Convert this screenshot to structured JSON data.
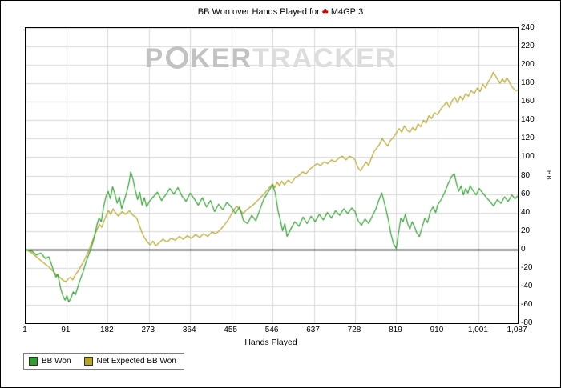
{
  "title": {
    "prefix": "BB Won over Hands Played for",
    "club_symbol": "♣",
    "subject": "M4GPI3"
  },
  "watermark": {
    "text_p": "P",
    "text_ker": "KER",
    "text_tracker": "TRACKER"
  },
  "colors": {
    "grid": "#d8d8d8",
    "axis": "#000000",
    "title_club": "#cc0000",
    "bb_won": "#2f9e2f",
    "net_expected": "#b5a426"
  },
  "chart_data": {
    "type": "line",
    "title": "BB Won over Hands Played for ♣ M4GPI3",
    "xlabel": "Hands Played",
    "ylabel": "BB",
    "xlim": [
      1,
      1087
    ],
    "ylim": [
      -80,
      240
    ],
    "grid": true,
    "zero_line": true,
    "legend_position": "bottom-left",
    "y_ticks": [
      240,
      220,
      200,
      180,
      160,
      140,
      120,
      100,
      80,
      60,
      40,
      20,
      0,
      -20,
      -40,
      -60,
      -80
    ],
    "x_ticks": [
      1,
      91,
      182,
      273,
      364,
      455,
      546,
      637,
      728,
      819,
      910,
      1001,
      1087
    ],
    "x_tick_labels": [
      "1",
      "91",
      "182",
      "273",
      "364",
      "455",
      "546",
      "637",
      "728",
      "819",
      "910",
      "1,001",
      "1,087"
    ],
    "series": [
      {
        "name": "BB Won",
        "color": "#2f9e2f",
        "points": [
          [
            1,
            0
          ],
          [
            15,
            -2
          ],
          [
            25,
            -6
          ],
          [
            35,
            -4
          ],
          [
            45,
            -10
          ],
          [
            52,
            -8
          ],
          [
            58,
            -16
          ],
          [
            63,
            -24
          ],
          [
            68,
            -30
          ],
          [
            72,
            -27
          ],
          [
            78,
            -42
          ],
          [
            83,
            -50
          ],
          [
            88,
            -55
          ],
          [
            92,
            -50
          ],
          [
            96,
            -57
          ],
          [
            101,
            -53
          ],
          [
            106,
            -46
          ],
          [
            111,
            -49
          ],
          [
            116,
            -41
          ],
          [
            122,
            -32
          ],
          [
            128,
            -24
          ],
          [
            134,
            -14
          ],
          [
            140,
            -6
          ],
          [
            146,
            2
          ],
          [
            152,
            12
          ],
          [
            158,
            26
          ],
          [
            163,
            34
          ],
          [
            168,
            30
          ],
          [
            173,
            46
          ],
          [
            178,
            57
          ],
          [
            183,
            63
          ],
          [
            188,
            55
          ],
          [
            193,
            68
          ],
          [
            198,
            60
          ],
          [
            203,
            50
          ],
          [
            208,
            57
          ],
          [
            213,
            44
          ],
          [
            218,
            52
          ],
          [
            224,
            62
          ],
          [
            229,
            72
          ],
          [
            233,
            84
          ],
          [
            238,
            76
          ],
          [
            243,
            64
          ],
          [
            248,
            54
          ],
          [
            253,
            62
          ],
          [
            258,
            48
          ],
          [
            263,
            56
          ],
          [
            268,
            46
          ],
          [
            274,
            52
          ],
          [
            283,
            57
          ],
          [
            292,
            62
          ],
          [
            301,
            53
          ],
          [
            310,
            59
          ],
          [
            319,
            66
          ],
          [
            328,
            60
          ],
          [
            337,
            67
          ],
          [
            346,
            58
          ],
          [
            355,
            52
          ],
          [
            364,
            61
          ],
          [
            373,
            55
          ],
          [
            382,
            48
          ],
          [
            391,
            56
          ],
          [
            400,
            46
          ],
          [
            409,
            53
          ],
          [
            418,
            41
          ],
          [
            427,
            49
          ],
          [
            436,
            43
          ],
          [
            445,
            51
          ],
          [
            455,
            46
          ],
          [
            464,
            39
          ],
          [
            473,
            46
          ],
          [
            482,
            31
          ],
          [
            491,
            28
          ],
          [
            500,
            37
          ],
          [
            509,
            31
          ],
          [
            518,
            43
          ],
          [
            527,
            55
          ],
          [
            536,
            62
          ],
          [
            546,
            70
          ],
          [
            552,
            61
          ],
          [
            558,
            42
          ],
          [
            563,
            32
          ],
          [
            568,
            20
          ],
          [
            573,
            28
          ],
          [
            578,
            14
          ],
          [
            586,
            22
          ],
          [
            595,
            30
          ],
          [
            604,
            25
          ],
          [
            613,
            35
          ],
          [
            622,
            28
          ],
          [
            631,
            36
          ],
          [
            640,
            30
          ],
          [
            649,
            38
          ],
          [
            658,
            32
          ],
          [
            667,
            40
          ],
          [
            676,
            34
          ],
          [
            685,
            42
          ],
          [
            694,
            37
          ],
          [
            703,
            44
          ],
          [
            712,
            39
          ],
          [
            721,
            45
          ],
          [
            728,
            41
          ],
          [
            735,
            31
          ],
          [
            742,
            26
          ],
          [
            750,
            33
          ],
          [
            758,
            28
          ],
          [
            766,
            36
          ],
          [
            774,
            44
          ],
          [
            781,
            54
          ],
          [
            787,
            61
          ],
          [
            792,
            52
          ],
          [
            797,
            42
          ],
          [
            802,
            31
          ],
          [
            807,
            17
          ],
          [
            813,
            6
          ],
          [
            819,
            1
          ],
          [
            824,
            18
          ],
          [
            829,
            34
          ],
          [
            834,
            30
          ],
          [
            839,
            38
          ],
          [
            844,
            28
          ],
          [
            849,
            22
          ],
          [
            854,
            30
          ],
          [
            859,
            25
          ],
          [
            864,
            18
          ],
          [
            870,
            14
          ],
          [
            876,
            24
          ],
          [
            882,
            34
          ],
          [
            888,
            29
          ],
          [
            894,
            41
          ],
          [
            900,
            46
          ],
          [
            906,
            40
          ],
          [
            910,
            48
          ],
          [
            918,
            54
          ],
          [
            926,
            62
          ],
          [
            934,
            72
          ],
          [
            941,
            79
          ],
          [
            947,
            82
          ],
          [
            952,
            71
          ],
          [
            957,
            63
          ],
          [
            962,
            69
          ],
          [
            967,
            59
          ],
          [
            972,
            66
          ],
          [
            977,
            61
          ],
          [
            982,
            69
          ],
          [
            988,
            64
          ],
          [
            995,
            59
          ],
          [
            1002,
            66
          ],
          [
            1010,
            61
          ],
          [
            1018,
            56
          ],
          [
            1026,
            52
          ],
          [
            1034,
            47
          ],
          [
            1042,
            54
          ],
          [
            1050,
            50
          ],
          [
            1058,
            57
          ],
          [
            1066,
            52
          ],
          [
            1074,
            59
          ],
          [
            1081,
            55
          ],
          [
            1087,
            58
          ]
        ]
      },
      {
        "name": "Net Expected BB Won",
        "color": "#b5a426",
        "points": [
          [
            1,
            0
          ],
          [
            12,
            -3
          ],
          [
            22,
            -7
          ],
          [
            32,
            -11
          ],
          [
            42,
            -15
          ],
          [
            52,
            -19
          ],
          [
            62,
            -24
          ],
          [
            70,
            -28
          ],
          [
            78,
            -31
          ],
          [
            85,
            -34
          ],
          [
            90,
            -35
          ],
          [
            95,
            -32
          ],
          [
            100,
            -30
          ],
          [
            105,
            -33
          ],
          [
            110,
            -28
          ],
          [
            116,
            -24
          ],
          [
            122,
            -19
          ],
          [
            128,
            -14
          ],
          [
            134,
            -8
          ],
          [
            140,
            -2
          ],
          [
            146,
            6
          ],
          [
            152,
            14
          ],
          [
            158,
            21
          ],
          [
            164,
            27
          ],
          [
            169,
            24
          ],
          [
            174,
            31
          ],
          [
            179,
            37
          ],
          [
            184,
            42
          ],
          [
            189,
            38
          ],
          [
            194,
            44
          ],
          [
            199,
            40
          ],
          [
            206,
            36
          ],
          [
            214,
            41
          ],
          [
            222,
            38
          ],
          [
            230,
            42
          ],
          [
            238,
            37
          ],
          [
            246,
            34
          ],
          [
            252,
            26
          ],
          [
            258,
            18
          ],
          [
            264,
            12
          ],
          [
            270,
            8
          ],
          [
            276,
            5
          ],
          [
            282,
            9
          ],
          [
            288,
            4
          ],
          [
            295,
            7
          ],
          [
            304,
            11
          ],
          [
            313,
            8
          ],
          [
            322,
            12
          ],
          [
            331,
            10
          ],
          [
            340,
            14
          ],
          [
            349,
            11
          ],
          [
            358,
            15
          ],
          [
            367,
            12
          ],
          [
            376,
            16
          ],
          [
            385,
            13
          ],
          [
            394,
            17
          ],
          [
            403,
            14
          ],
          [
            412,
            19
          ],
          [
            421,
            17
          ],
          [
            430,
            21
          ],
          [
            439,
            26
          ],
          [
            448,
            32
          ],
          [
            455,
            38
          ],
          [
            461,
            43
          ],
          [
            467,
            47
          ],
          [
            473,
            43
          ],
          [
            481,
            39
          ],
          [
            489,
            43
          ],
          [
            497,
            46
          ],
          [
            505,
            49
          ],
          [
            513,
            53
          ],
          [
            521,
            57
          ],
          [
            529,
            61
          ],
          [
            537,
            66
          ],
          [
            546,
            71
          ],
          [
            551,
            67
          ],
          [
            556,
            73
          ],
          [
            561,
            69
          ],
          [
            566,
            74
          ],
          [
            572,
            70
          ],
          [
            580,
            75
          ],
          [
            588,
            72
          ],
          [
            596,
            78
          ],
          [
            604,
            80
          ],
          [
            612,
            84
          ],
          [
            620,
            82
          ],
          [
            628,
            87
          ],
          [
            636,
            90
          ],
          [
            644,
            93
          ],
          [
            652,
            91
          ],
          [
            660,
            95
          ],
          [
            668,
            93
          ],
          [
            676,
            97
          ],
          [
            684,
            95
          ],
          [
            692,
            99
          ],
          [
            700,
            101
          ],
          [
            708,
            97
          ],
          [
            716,
            101
          ],
          [
            724,
            99
          ],
          [
            728,
            97
          ],
          [
            734,
            89
          ],
          [
            740,
            85
          ],
          [
            746,
            90
          ],
          [
            752,
            95
          ],
          [
            758,
            91
          ],
          [
            764,
            99
          ],
          [
            770,
            106
          ],
          [
            776,
            110
          ],
          [
            782,
            114
          ],
          [
            788,
            120
          ],
          [
            794,
            116
          ],
          [
            800,
            112
          ],
          [
            806,
            118
          ],
          [
            812,
            121
          ],
          [
            819,
            126
          ],
          [
            825,
            131
          ],
          [
            831,
            127
          ],
          [
            837,
            134
          ],
          [
            843,
            129
          ],
          [
            849,
            127
          ],
          [
            855,
            132
          ],
          [
            861,
            129
          ],
          [
            867,
            136
          ],
          [
            873,
            133
          ],
          [
            879,
            140
          ],
          [
            885,
            137
          ],
          [
            891,
            145
          ],
          [
            897,
            142
          ],
          [
            903,
            148
          ],
          [
            910,
            146
          ],
          [
            917,
            152
          ],
          [
            924,
            156
          ],
          [
            930,
            160
          ],
          [
            936,
            154
          ],
          [
            942,
            161
          ],
          [
            948,
            165
          ],
          [
            954,
            159
          ],
          [
            960,
            166
          ],
          [
            966,
            162
          ],
          [
            972,
            169
          ],
          [
            978,
            166
          ],
          [
            984,
            172
          ],
          [
            991,
            169
          ],
          [
            998,
            175
          ],
          [
            1004,
            171
          ],
          [
            1010,
            179
          ],
          [
            1016,
            175
          ],
          [
            1022,
            182
          ],
          [
            1028,
            186
          ],
          [
            1033,
            192
          ],
          [
            1038,
            188
          ],
          [
            1043,
            184
          ],
          [
            1048,
            180
          ],
          [
            1053,
            185
          ],
          [
            1058,
            181
          ],
          [
            1063,
            186
          ],
          [
            1068,
            182
          ],
          [
            1073,
            177
          ],
          [
            1078,
            174
          ],
          [
            1083,
            172
          ],
          [
            1087,
            173
          ]
        ]
      }
    ]
  }
}
